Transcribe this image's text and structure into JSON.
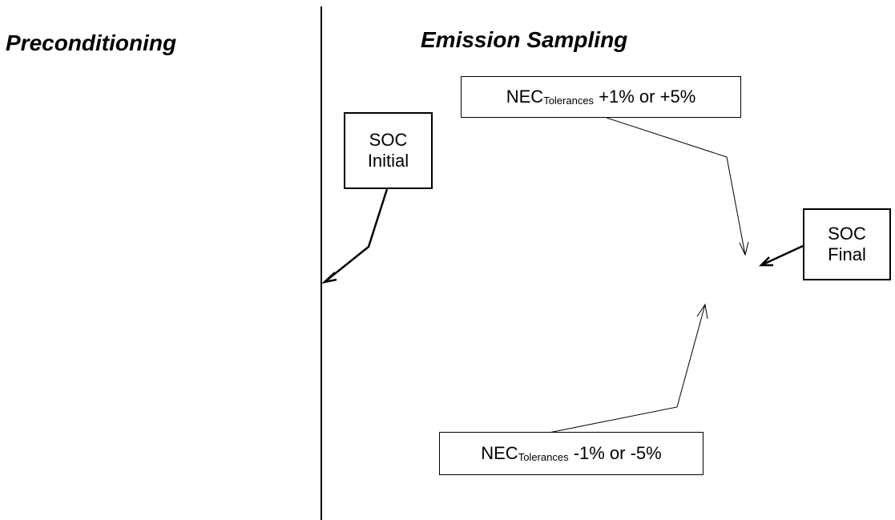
{
  "headings": {
    "preconditioning": "Preconditioning",
    "emission_sampling": "Emission Sampling"
  },
  "boxes": {
    "soc_initial": {
      "line1": "SOC",
      "line2": "Initial"
    },
    "soc_final": {
      "line1": "SOC",
      "line2": "Final"
    },
    "nec_upper": {
      "main": "NEC",
      "subscript": "Tolerances",
      "value": " +1% or +5%"
    },
    "nec_lower": {
      "main": "NEC",
      "subscript": "Tolerances",
      "value": " -1% or -5%"
    }
  },
  "colors": {
    "line": "#000000",
    "background": "#ffffff"
  }
}
